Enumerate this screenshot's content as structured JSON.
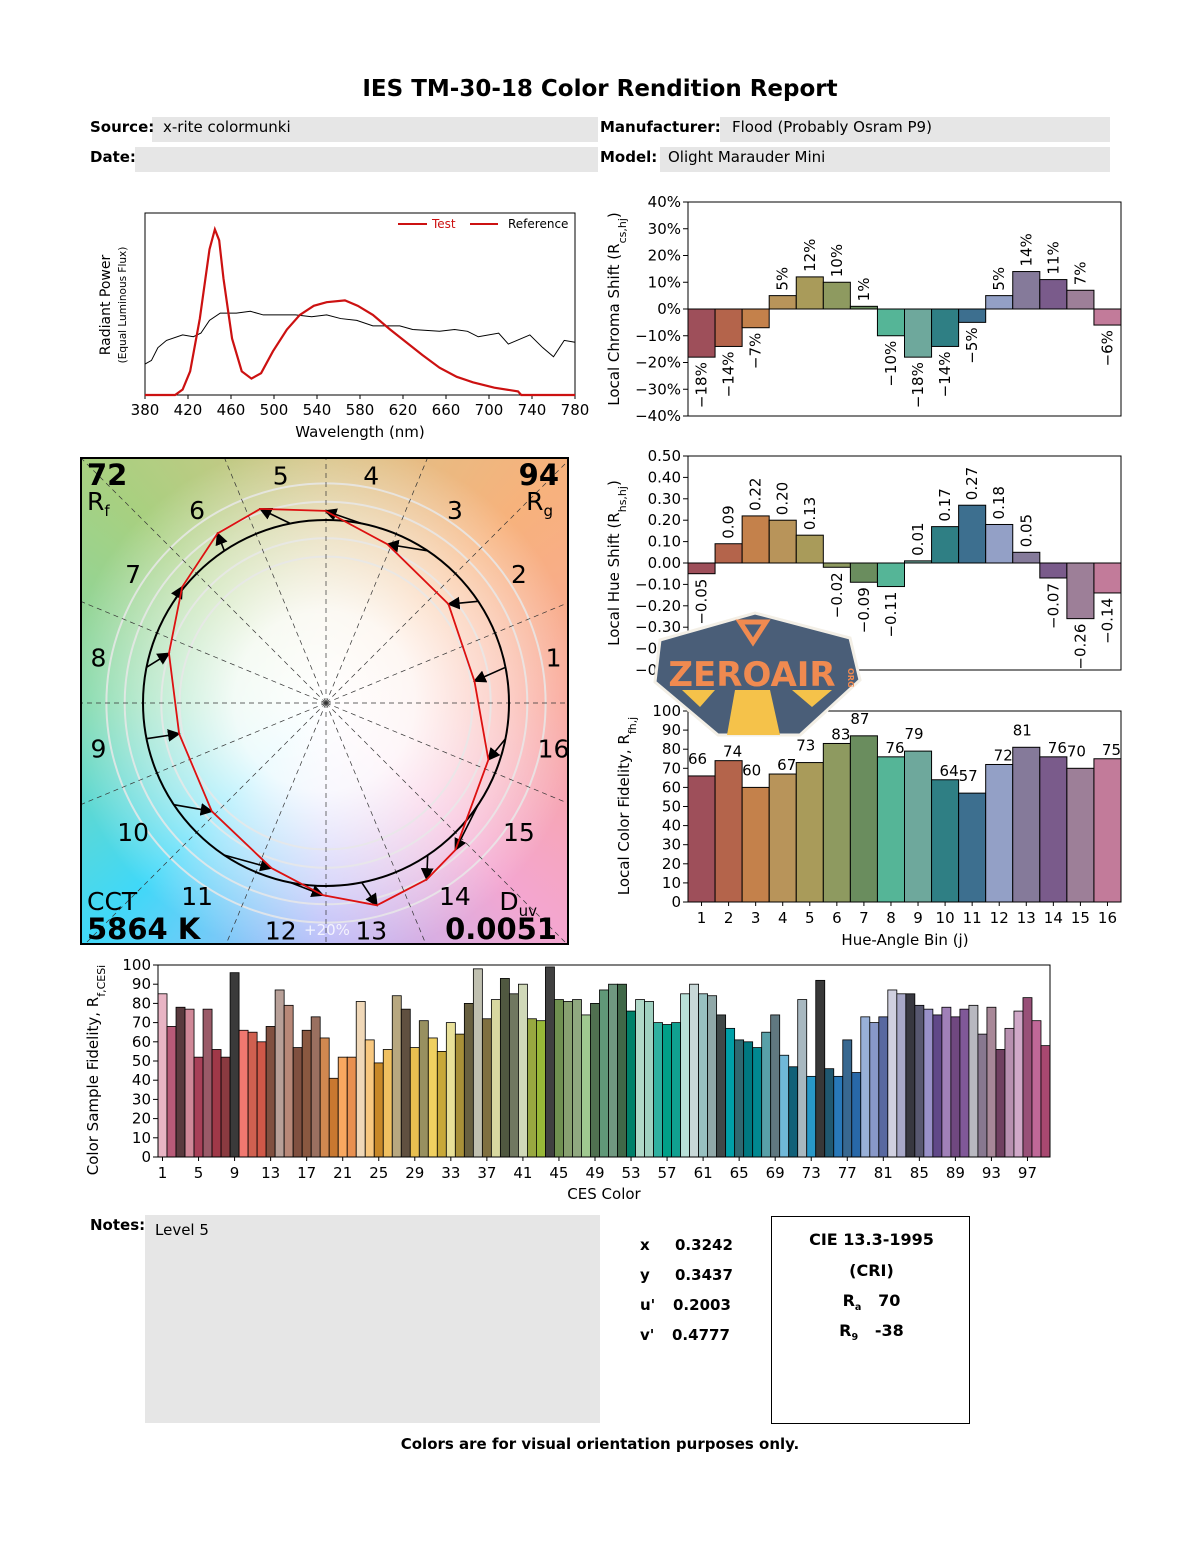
{
  "header": {
    "title": "IES TM-30-18 Color Rendition Report",
    "source_label": "Source:",
    "source": "x-rite colormunki",
    "manufacturer_label": "Manufacturer:",
    "manufacturer": "Flood (Probably Osram P9)",
    "date_label": "Date:",
    "date": "",
    "model_label": "Model:",
    "model": "Olight Marauder Mini"
  },
  "spectrum": {
    "type": "line",
    "xlabel": "Wavelength (nm)",
    "ylabel": "Radiant Power",
    "ylabel2": "(Equal Luminous Flux)",
    "xticks": [
      380,
      420,
      460,
      500,
      540,
      580,
      620,
      660,
      700,
      740,
      780
    ],
    "xlim": [
      380,
      780
    ],
    "ylim": [
      0,
      1
    ],
    "legend": {
      "test": "Test",
      "reference": "Reference",
      "placement": "top-right"
    },
    "test": [
      [
        380,
        0
      ],
      [
        408,
        0
      ],
      [
        415,
        0.03
      ],
      [
        422,
        0.13
      ],
      [
        431,
        0.42
      ],
      [
        440,
        0.8
      ],
      [
        445,
        0.91
      ],
      [
        449,
        0.85
      ],
      [
        453,
        0.64
      ],
      [
        461,
        0.31
      ],
      [
        470,
        0.13
      ],
      [
        479,
        0.09
      ],
      [
        488,
        0.12
      ],
      [
        499,
        0.24
      ],
      [
        512,
        0.36
      ],
      [
        524,
        0.44
      ],
      [
        537,
        0.49
      ],
      [
        549,
        0.51
      ],
      [
        566,
        0.52
      ],
      [
        578,
        0.49
      ],
      [
        592,
        0.44
      ],
      [
        608,
        0.36
      ],
      [
        623,
        0.29
      ],
      [
        638,
        0.22
      ],
      [
        654,
        0.15
      ],
      [
        670,
        0.1
      ],
      [
        685,
        0.07
      ],
      [
        705,
        0.04
      ],
      [
        727,
        0.02
      ],
      [
        730,
        0
      ],
      [
        780,
        0
      ]
    ],
    "reference": [
      [
        380,
        0.17
      ],
      [
        386,
        0.19
      ],
      [
        392,
        0.26
      ],
      [
        400,
        0.3
      ],
      [
        415,
        0.33
      ],
      [
        425,
        0.32
      ],
      [
        432,
        0.34
      ],
      [
        440,
        0.41
      ],
      [
        450,
        0.45
      ],
      [
        465,
        0.45
      ],
      [
        478,
        0.46
      ],
      [
        490,
        0.44
      ],
      [
        500,
        0.44
      ],
      [
        520,
        0.44
      ],
      [
        535,
        0.43
      ],
      [
        549,
        0.44
      ],
      [
        562,
        0.42
      ],
      [
        577,
        0.41
      ],
      [
        592,
        0.38
      ],
      [
        617,
        0.38
      ],
      [
        629,
        0.36
      ],
      [
        654,
        0.35
      ],
      [
        668,
        0.36
      ],
      [
        680,
        0.35
      ],
      [
        690,
        0.32
      ],
      [
        709,
        0.34
      ],
      [
        718,
        0.28
      ],
      [
        738,
        0.33
      ],
      [
        750,
        0.26
      ],
      [
        760,
        0.21
      ],
      [
        770,
        0.3
      ],
      [
        780,
        0.29
      ]
    ],
    "colors": {
      "test": "#cc1111",
      "reference": "#000000"
    }
  },
  "bins": {
    "labels": [
      "1",
      "2",
      "3",
      "4",
      "5",
      "6",
      "7",
      "8",
      "9",
      "10",
      "11",
      "12",
      "13",
      "14",
      "15",
      "16"
    ],
    "colors": [
      "#9e4f5a",
      "#b4644b",
      "#c4814b",
      "#b8945a",
      "#a99b5a",
      "#8e9a60",
      "#6a8d5e",
      "#55b597",
      "#6ea89c",
      "#2f7f84",
      "#3d6f8f",
      "#93a0c6",
      "#857a9a",
      "#7a5b8b",
      "#9d7f98",
      "#c27b9a"
    ]
  },
  "chroma": {
    "type": "bar",
    "ylabel": "Local Chroma Shift (R",
    "ylabel_sub": "cs,hj",
    "ylabel_end": ")",
    "ylim": [
      -40,
      40
    ],
    "yticks": [
      40,
      30,
      20,
      10,
      0,
      -10,
      -20,
      -30,
      -40
    ],
    "unit": "%",
    "values": [
      -18,
      -14,
      -7,
      5,
      12,
      10,
      1,
      -10,
      -18,
      -14,
      -5,
      5,
      14,
      11,
      7,
      -6
    ]
  },
  "hue": {
    "type": "bar",
    "ylabel": "Local Hue Shift (R",
    "ylabel_sub": "hs,hj",
    "ylabel_end": ")",
    "ylim": [
      -0.5,
      0.5
    ],
    "yticks": [
      0.5,
      0.4,
      0.3,
      0.2,
      0.1,
      0,
      -0.1,
      -0.2,
      -0.3,
      -0.4,
      -0.5
    ],
    "values": [
      -0.05,
      0.09,
      0.22,
      0.2,
      0.13,
      -0.02,
      -0.09,
      -0.11,
      0.01,
      0.17,
      0.27,
      0.18,
      0.05,
      -0.07,
      -0.26,
      -0.14
    ]
  },
  "fidelity": {
    "type": "bar",
    "ylabel": "Local Color Fidelity, R",
    "ylabel_sub": "fh,j",
    "ylabel_end": "",
    "xlabel": "Hue-Angle Bin (j)",
    "ylim": [
      0,
      100
    ],
    "yticks": [
      100,
      90,
      80,
      70,
      60,
      50,
      40,
      30,
      20,
      10,
      0
    ],
    "values": [
      66,
      74,
      60,
      67,
      73,
      83,
      87,
      76,
      79,
      64,
      57,
      72,
      81,
      76,
      70,
      75
    ]
  },
  "vector": {
    "rf": "72",
    "rf_label": "R",
    "rf_sub": "f",
    "rg": "94",
    "rg_label": "R",
    "rg_sub": "g",
    "cct_label": "CCT",
    "cct": "5864 K",
    "duv_label": "D",
    "duv_sub": "uv",
    "duv": "0.0051",
    "ring_label": "+20%"
  },
  "ces": {
    "type": "bar",
    "ylabel": "Color Sample Fidelity, R",
    "ylabel_sub": "f,CESi",
    "xlabel": "CES Color",
    "ylim": [
      0,
      100
    ],
    "yticks": [
      100,
      90,
      80,
      70,
      60,
      50,
      40,
      30,
      20,
      10,
      0
    ],
    "xticks": [
      1,
      5,
      9,
      13,
      17,
      21,
      25,
      29,
      33,
      37,
      41,
      45,
      49,
      53,
      57,
      61,
      65,
      69,
      73,
      77,
      81,
      85,
      89,
      93,
      97
    ],
    "values": [
      85,
      68,
      78,
      77,
      52,
      77,
      56,
      52,
      96,
      66,
      65,
      60,
      68,
      87,
      79,
      57,
      66,
      73,
      62,
      41,
      52,
      52,
      81,
      61,
      49,
      56,
      84,
      77,
      57,
      71,
      62,
      55,
      70,
      64,
      80,
      98,
      72,
      82,
      93,
      85,
      90,
      72,
      71,
      99,
      82,
      81,
      82,
      74,
      80,
      87,
      90,
      90,
      76,
      82,
      81,
      70,
      69,
      70,
      85,
      90,
      85,
      84,
      74,
      67,
      61,
      60,
      57,
      65,
      74,
      53,
      47,
      82,
      42,
      92,
      46,
      42,
      61,
      44,
      73,
      70,
      73,
      87,
      85,
      85,
      79,
      77,
      74,
      78,
      73,
      77,
      79,
      64,
      78,
      56,
      67,
      76,
      83,
      71,
      58
    ],
    "colors": [
      "#e8b4c4",
      "#b85a78",
      "#5a3a3e",
      "#d08898",
      "#a84058",
      "#9a5a68",
      "#a03848",
      "#8a3a40",
      "#3a3a3a",
      "#f07870",
      "#d06050",
      "#d05848",
      "#805040",
      "#b8a098",
      "#b88878",
      "#805040",
      "#8a5840",
      "#9a7060",
      "#d08850",
      "#c87830",
      "#f8a860",
      "#e89050",
      "#f0d8b8",
      "#f8c880",
      "#c88828",
      "#f0c060",
      "#b8a880",
      "#605040",
      "#e8c050",
      "#989060",
      "#f0d060",
      "#c8a838",
      "#e8e098",
      "#a89038",
      "#686040",
      "#c0c0b0",
      "#807040",
      "#d8d8a0",
      "#505840",
      "#707860",
      "#d0d8b8",
      "#98a840",
      "#98b838",
      "#404040",
      "#709050",
      "#88a070",
      "#90a880",
      "#a0c890",
      "#507050",
      "#609878",
      "#709880",
      "#406848",
      "#00806a",
      "#b0d8c8",
      "#a0d0c0",
      "#30b0a0",
      "#00a088",
      "#10a090",
      "#b8e0d8",
      "#c8d8d8",
      "#98c0c0",
      "#90a8a8",
      "#404848",
      "#00a0a8",
      "#306870",
      "#007880",
      "#008890",
      "#58a0a8",
      "#607880",
      "#70b8d8",
      "#106078",
      "#a8b8c0",
      "#2898c8",
      "#383838",
      "#205870",
      "#2878b8",
      "#386890",
      "#2868a8",
      "#98b0d8",
      "#8898c8",
      "#5868a0",
      "#d0d0e0",
      "#a8a8c8",
      "#383840",
      "#585870",
      "#9890c8",
      "#604888",
      "#a080b8",
      "#704880",
      "#805898",
      "#b8b8c0",
      "#887890",
      "#a88898",
      "#704060",
      "#b890b0",
      "#d0a8c8",
      "#985078",
      "#c06898",
      "#a84870"
    ]
  },
  "notes": {
    "label": "Notes:",
    "text": "Level 5"
  },
  "chromaticity": [
    {
      "label": "x",
      "value": "0.3242"
    },
    {
      "label": "y",
      "value": "0.3437"
    },
    {
      "label": "u'",
      "value": "0.2003"
    },
    {
      "label": "v'",
      "value": "0.4777"
    }
  ],
  "cri": {
    "title": "CIE 13.3-1995",
    "subtitle": "(CRI)",
    "ra_label": "R",
    "ra_sub": "a",
    "ra": "70",
    "r9_label": "R",
    "r9_sub": "9",
    "r9": "-38"
  },
  "footer": "Colors are for visual orientation purposes only.",
  "watermark": {
    "text": "ZEROAIR",
    "suffix": "ORG",
    "colors": {
      "badge": "#4a5e78",
      "text": "#f08a50",
      "accent": "#f5c24a"
    }
  }
}
